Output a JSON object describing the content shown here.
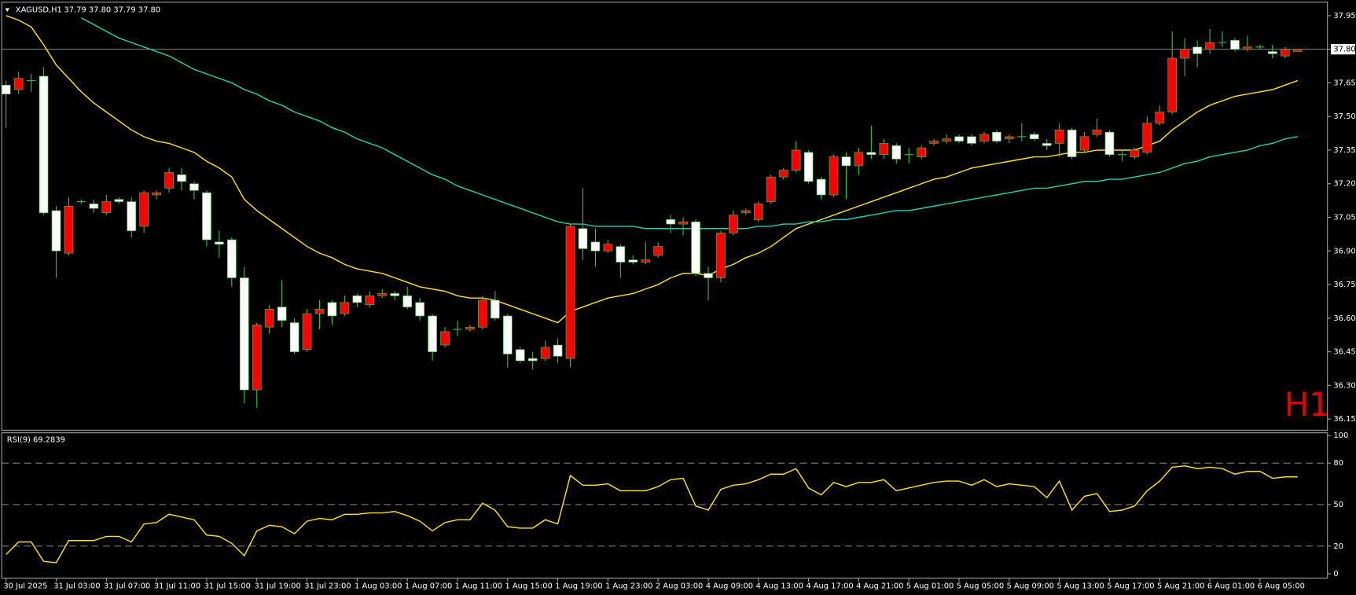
{
  "chart_data": [
    {
      "type": "candlestick",
      "title": "XAGUSD,H1",
      "subtitle": "37.79 37.80 37.79 37.80",
      "annotation": "H1",
      "categories": [
        "30 Jul 2025",
        null,
        null,
        null,
        "31 Jul 03:00",
        null,
        null,
        null,
        "31 Jul 07:00",
        null,
        null,
        null,
        "31 Jul 11:00",
        null,
        null,
        null,
        "31 Jul 15:00",
        null,
        null,
        null,
        "31 Jul 19:00",
        null,
        null,
        null,
        "31 Jul 23:00",
        null,
        null,
        null,
        "1 Aug 03:00",
        null,
        null,
        null,
        "1 Aug 07:00",
        null,
        null,
        null,
        "1 Aug 11:00",
        null,
        null,
        null,
        "1 Aug 15:00",
        null,
        null,
        null,
        "1 Aug 19:00",
        null,
        null,
        null,
        "1 Aug 23:00",
        null,
        null,
        null,
        "2 Aug 03:00",
        null,
        null,
        null,
        "4 Aug 09:00",
        null,
        null,
        null,
        "4 Aug 13:00",
        null,
        null,
        null,
        "4 Aug 17:00",
        null,
        null,
        null,
        "4 Aug 21:00",
        null,
        null,
        null,
        "5 Aug 01:00",
        null,
        null,
        null,
        "5 Aug 05:00",
        null,
        null,
        null,
        "5 Aug 09:00",
        null,
        null,
        null,
        "5 Aug 13:00",
        null,
        null,
        null,
        "5 Aug 17:00",
        null,
        null,
        null,
        "5 Aug 21:00",
        null,
        null,
        null,
        "6 Aug 01:00",
        null,
        null,
        null,
        "6 Aug 05:00",
        null,
        null,
        null
      ],
      "open": [
        37.64,
        37.62,
        37.66,
        37.68,
        37.08,
        36.89,
        37.12,
        37.11,
        37.07,
        37.13,
        37.12,
        37.01,
        37.15,
        37.18,
        37.24,
        37.2,
        37.16,
        36.94,
        36.95,
        36.78,
        36.28,
        36.56,
        36.65,
        36.58,
        36.46,
        36.62,
        36.67,
        36.62,
        36.7,
        36.66,
        36.7,
        36.71,
        36.7,
        36.67,
        36.61,
        36.48,
        36.55,
        36.55,
        36.56,
        36.68,
        36.61,
        36.46,
        36.42,
        36.42,
        36.48,
        36.42,
        37.0,
        36.94,
        36.9,
        36.92,
        36.86,
        36.85,
        36.88,
        37.04,
        37.02,
        37.03,
        36.8,
        36.78,
        36.98,
        37.07,
        37.04,
        37.12,
        37.23,
        37.26,
        37.34,
        37.22,
        37.15,
        37.32,
        37.28,
        37.34,
        37.33,
        37.37,
        37.33,
        37.32,
        37.38,
        37.39,
        37.41,
        37.41,
        37.39,
        37.43,
        37.4,
        37.41,
        37.42,
        37.38,
        37.38,
        37.44,
        37.35,
        37.42,
        37.43,
        37.33,
        37.32,
        37.34,
        37.47,
        37.52,
        37.76,
        37.81,
        37.8,
        37.83,
        37.84,
        37.8,
        37.81,
        37.79,
        37.77,
        37.79
      ],
      "high": [
        37.66,
        37.7,
        37.69,
        37.72,
        37.1,
        37.14,
        37.13,
        37.13,
        37.15,
        37.14,
        37.14,
        37.17,
        37.17,
        37.27,
        37.27,
        37.21,
        37.17,
        36.99,
        36.96,
        36.83,
        36.58,
        36.66,
        36.77,
        36.6,
        36.64,
        36.68,
        36.68,
        36.7,
        36.71,
        36.72,
        36.73,
        36.72,
        36.74,
        36.69,
        36.62,
        36.56,
        36.59,
        36.57,
        36.7,
        36.72,
        36.62,
        36.47,
        36.45,
        36.5,
        36.51,
        37.02,
        37.18,
        37.0,
        36.95,
        36.93,
        36.88,
        36.94,
        36.94,
        37.06,
        37.05,
        37.04,
        36.83,
        36.99,
        37.08,
        37.09,
        37.12,
        37.24,
        37.27,
        37.39,
        37.35,
        37.23,
        37.33,
        37.34,
        37.36,
        37.46,
        37.4,
        37.38,
        37.36,
        37.37,
        37.4,
        37.42,
        37.42,
        37.42,
        37.43,
        37.44,
        37.42,
        37.47,
        37.43,
        37.4,
        37.47,
        37.45,
        37.43,
        37.49,
        37.44,
        37.35,
        37.36,
        37.5,
        37.55,
        37.88,
        37.85,
        37.84,
        37.89,
        37.88,
        37.85,
        37.86,
        37.82,
        37.82,
        37.81,
        37.8
      ],
      "low": [
        37.45,
        37.6,
        37.61,
        37.06,
        36.78,
        36.88,
        37.11,
        37.07,
        37.06,
        37.11,
        36.96,
        36.98,
        37.13,
        37.16,
        37.17,
        37.13,
        36.92,
        36.87,
        36.74,
        36.22,
        36.2,
        36.53,
        36.56,
        36.44,
        36.45,
        36.55,
        36.57,
        36.61,
        36.65,
        36.65,
        36.69,
        36.68,
        36.64,
        36.59,
        36.41,
        36.47,
        36.52,
        36.54,
        36.55,
        36.59,
        36.38,
        36.4,
        36.37,
        36.41,
        36.4,
        36.38,
        36.86,
        36.83,
        36.89,
        36.78,
        36.84,
        36.84,
        36.87,
        36.98,
        36.97,
        36.79,
        36.68,
        36.76,
        36.97,
        37.06,
        37.03,
        37.11,
        37.22,
        37.25,
        37.2,
        37.13,
        37.14,
        37.13,
        37.24,
        37.31,
        37.31,
        37.29,
        37.29,
        37.31,
        37.37,
        37.38,
        37.38,
        37.37,
        37.38,
        37.38,
        37.38,
        37.39,
        37.39,
        37.35,
        37.32,
        37.31,
        37.34,
        37.41,
        37.32,
        37.3,
        37.31,
        37.33,
        37.46,
        37.51,
        37.68,
        37.72,
        37.78,
        37.81,
        37.79,
        37.79,
        37.8,
        37.76,
        37.76,
        37.79
      ],
      "close": [
        37.6,
        37.67,
        37.66,
        37.07,
        36.9,
        37.1,
        37.12,
        37.09,
        37.12,
        37.12,
        36.99,
        37.16,
        37.16,
        37.25,
        37.21,
        37.17,
        36.95,
        36.93,
        36.78,
        36.28,
        36.57,
        36.64,
        36.59,
        36.45,
        36.62,
        36.64,
        36.61,
        36.67,
        36.67,
        36.7,
        36.71,
        36.7,
        36.65,
        36.61,
        36.45,
        36.54,
        36.55,
        36.56,
        36.68,
        36.6,
        36.44,
        36.41,
        36.41,
        36.47,
        36.43,
        37.01,
        36.91,
        36.9,
        36.93,
        36.85,
        36.85,
        36.86,
        36.92,
        37.02,
        37.03,
        36.8,
        36.78,
        36.98,
        37.06,
        37.08,
        37.11,
        37.23,
        37.26,
        37.35,
        37.21,
        37.15,
        37.32,
        37.28,
        37.34,
        37.33,
        37.38,
        37.31,
        37.33,
        37.36,
        37.39,
        37.4,
        37.39,
        37.38,
        37.42,
        37.39,
        37.41,
        37.41,
        37.4,
        37.37,
        37.44,
        37.32,
        37.41,
        37.44,
        37.33,
        37.33,
        37.35,
        37.47,
        37.52,
        37.76,
        37.8,
        37.78,
        37.83,
        37.83,
        37.8,
        37.81,
        37.81,
        37.78,
        37.8,
        37.8
      ],
      "up_color": "#ff0000",
      "down_color": "#ffffff",
      "wick_color": "#3fbf3f",
      "series": [
        {
          "color": "#ffe21a",
          "values": [
            37.95,
            37.93,
            37.9,
            37.82,
            37.73,
            37.67,
            37.61,
            37.56,
            37.52,
            37.48,
            37.44,
            37.41,
            37.39,
            37.38,
            37.36,
            37.34,
            37.3,
            37.27,
            37.23,
            37.13,
            37.08,
            37.04,
            37.0,
            36.96,
            36.92,
            36.89,
            36.87,
            36.84,
            36.82,
            36.81,
            36.8,
            36.78,
            36.76,
            36.74,
            36.73,
            36.72,
            36.7,
            36.69,
            36.69,
            36.68,
            36.66,
            36.64,
            36.62,
            36.6,
            36.58,
            36.63,
            36.65,
            36.67,
            36.69,
            36.7,
            36.71,
            36.73,
            36.75,
            36.78,
            36.8,
            36.8,
            36.79,
            36.82,
            36.84,
            36.87,
            36.89,
            36.92,
            36.96,
            37.0,
            37.02,
            37.04,
            37.06,
            37.08,
            37.1,
            37.12,
            37.14,
            37.16,
            37.18,
            37.2,
            37.22,
            37.23,
            37.25,
            37.27,
            37.28,
            37.29,
            37.3,
            37.31,
            37.32,
            37.32,
            37.33,
            37.34,
            37.34,
            37.35,
            37.35,
            37.35,
            37.35,
            37.37,
            37.39,
            37.44,
            37.48,
            37.52,
            37.55,
            37.57,
            37.59,
            37.6,
            37.61,
            37.62,
            37.64,
            37.66
          ]
        },
        {
          "color": "#1fd3b0",
          "values": [
            null,
            null,
            null,
            null,
            null,
            null,
            37.94,
            37.91,
            37.88,
            37.85,
            37.83,
            37.81,
            37.79,
            37.77,
            37.74,
            37.71,
            37.69,
            37.67,
            37.65,
            37.62,
            37.6,
            37.57,
            37.55,
            37.52,
            37.5,
            37.48,
            37.45,
            37.43,
            37.4,
            37.38,
            37.36,
            37.33,
            37.3,
            37.27,
            37.24,
            37.22,
            37.19,
            37.17,
            37.15,
            37.13,
            37.11,
            37.09,
            37.07,
            37.05,
            37.03,
            37.02,
            37.02,
            37.01,
            37.01,
            37.01,
            37.01,
            37.0,
            37.0,
            37.0,
            37.0,
            37.0,
            37.0,
            37.0,
            37.0,
            37.0,
            37.01,
            37.01,
            37.02,
            37.02,
            37.03,
            37.03,
            37.04,
            37.04,
            37.05,
            37.06,
            37.07,
            37.08,
            37.08,
            37.09,
            37.1,
            37.11,
            37.12,
            37.13,
            37.14,
            37.15,
            37.16,
            37.17,
            37.18,
            37.18,
            37.19,
            37.2,
            37.21,
            37.21,
            37.22,
            37.22,
            37.23,
            37.24,
            37.25,
            37.27,
            37.29,
            37.3,
            37.32,
            37.33,
            37.34,
            37.35,
            37.37,
            37.38,
            37.4,
            37.41
          ]
        }
      ],
      "ylim": [
        36.1,
        38.01
      ],
      "yticks": [
        37.95,
        {
          "value": 37.8,
          "label": "37.80"
        },
        37.65,
        {
          "value": 37.5,
          "label": "37.50"
        },
        37.35,
        {
          "value": 37.2,
          "label": "37.20"
        },
        37.05,
        {
          "value": 36.9,
          "label": "36.90"
        },
        36.75,
        {
          "value": 36.6,
          "label": "36.60"
        },
        36.45,
        {
          "value": 36.3,
          "label": "36.30"
        },
        36.15
      ],
      "current_price": 37.8
    },
    {
      "type": "line",
      "title": "RSI(9) 69.2839",
      "color": "#ffe21a",
      "values": [
        14,
        23,
        23,
        9,
        8,
        24,
        24,
        24,
        27,
        27,
        23,
        36,
        37,
        43,
        41,
        39,
        28,
        27,
        22,
        13,
        31,
        35,
        34,
        29,
        38,
        40,
        39,
        43,
        43,
        44,
        44,
        45,
        42,
        38,
        31,
        37,
        39,
        39,
        51,
        46,
        34,
        33,
        33,
        39,
        36,
        71,
        64,
        64,
        65,
        60,
        60,
        60,
        63,
        68,
        69,
        49,
        46,
        61,
        64,
        65,
        68,
        72,
        72,
        76,
        62,
        57,
        66,
        63,
        66,
        66,
        68,
        60,
        62,
        64,
        66,
        67,
        67,
        64,
        68,
        63,
        65,
        64,
        63,
        55,
        67,
        46,
        56,
        58,
        45,
        46,
        49,
        60,
        67,
        77,
        78,
        76,
        77,
        76,
        72,
        74,
        74,
        69,
        70,
        70
      ],
      "ylim": [
        0,
        100
      ],
      "yticks": [
        0,
        20,
        50,
        80,
        100
      ],
      "levels": [
        20,
        50,
        80
      ]
    }
  ]
}
